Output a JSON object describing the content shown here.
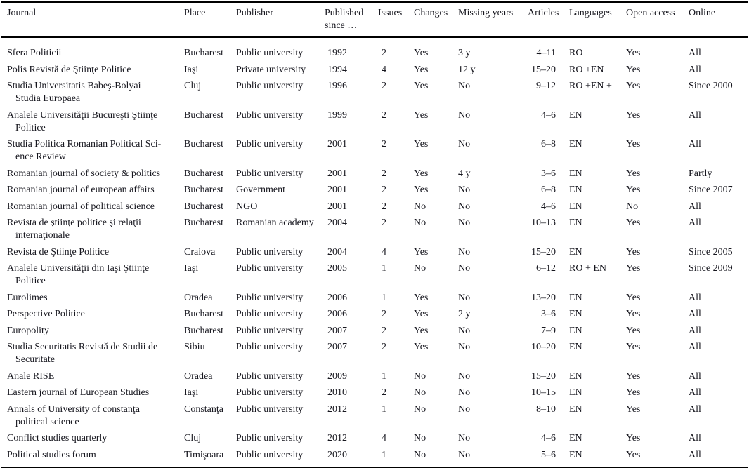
{
  "colors": {
    "background": "#ffffff",
    "text": "#16161e",
    "rule": "#000000"
  },
  "table": {
    "columns": [
      {
        "key": "journal",
        "label": "Journal"
      },
      {
        "key": "place",
        "label": "Place"
      },
      {
        "key": "publisher",
        "label": "Publisher"
      },
      {
        "key": "published_since",
        "label": "Published since …"
      },
      {
        "key": "issues",
        "label": "Issues"
      },
      {
        "key": "changes",
        "label": "Changes"
      },
      {
        "key": "missing_years",
        "label": "Missing years"
      },
      {
        "key": "articles",
        "label": "Articles"
      },
      {
        "key": "languages",
        "label": "Languages"
      },
      {
        "key": "open_access",
        "label": "Open access"
      },
      {
        "key": "online",
        "label": "Online"
      }
    ],
    "rows": [
      {
        "journal": "Sfera Politicii",
        "place": "Bucharest",
        "publisher": "Public university",
        "published_since": "1992",
        "issues": "2",
        "changes": "Yes",
        "missing_years": "3 y",
        "articles": "4–11",
        "languages": "RO",
        "open_access": "Yes",
        "online": "All"
      },
      {
        "journal": "Polis Revistă de Ştiinţe Politice",
        "place": "Iaşi",
        "publisher": "Private university",
        "published_since": "1994",
        "issues": "4",
        "changes": "Yes",
        "missing_years": "12 y",
        "articles": "15–20",
        "languages": "RO +EN",
        "open_access": "Yes",
        "online": "All"
      },
      {
        "journal": "Studia Universitatis Babeş-Bolyai\nStudia Europaea",
        "place": "Cluj",
        "publisher": "Public university",
        "published_since": "1996",
        "issues": "2",
        "changes": "Yes",
        "missing_years": "No",
        "articles": "9–12",
        "languages": "RO +EN +",
        "open_access": "Yes",
        "online": "Since 2000"
      },
      {
        "journal": "Analele Universităţii Bucureşti Ştiinţe\nPolitice",
        "place": "Bucharest",
        "publisher": "Public university",
        "published_since": "1999",
        "issues": "2",
        "changes": "Yes",
        "missing_years": "No",
        "articles": "4–6",
        "languages": "EN",
        "open_access": "Yes",
        "online": "All"
      },
      {
        "journal": "Studia Politica Romanian Political Sci-\nence Review",
        "place": "Bucharest",
        "publisher": "Public university",
        "published_since": "2001",
        "issues": "2",
        "changes": "Yes",
        "missing_years": "No",
        "articles": "6–8",
        "languages": "EN",
        "open_access": "Yes",
        "online": "All"
      },
      {
        "journal": "Romanian journal of society & politics",
        "place": "Bucharest",
        "publisher": "Public university",
        "published_since": "2001",
        "issues": "2",
        "changes": "Yes",
        "missing_years": "4 y",
        "articles": "3–6",
        "languages": "EN",
        "open_access": "Yes",
        "online": "Partly"
      },
      {
        "journal": "Romanian journal of european affairs",
        "place": "Bucharest",
        "publisher": "Government",
        "published_since": "2001",
        "issues": "2",
        "changes": "Yes",
        "missing_years": "No",
        "articles": "6–8",
        "languages": "EN",
        "open_access": "Yes",
        "online": "Since 2007"
      },
      {
        "journal": "Romanian journal of political science",
        "place": "Bucharest",
        "publisher": "NGO",
        "published_since": "2001",
        "issues": "2",
        "changes": "No",
        "missing_years": "No",
        "articles": "4–6",
        "languages": "EN",
        "open_access": "No",
        "online": "All"
      },
      {
        "journal": "Revista de ştiinţe politice şi relaţii\ninternaţionale",
        "place": "Bucharest",
        "publisher": "Romanian academy",
        "published_since": "2004",
        "issues": "2",
        "changes": "No",
        "missing_years": "No",
        "articles": "10–13",
        "languages": "EN",
        "open_access": "Yes",
        "online": "All"
      },
      {
        "journal": "Revista de Ştiinţe Politice",
        "place": "Craiova",
        "publisher": "Public university",
        "published_since": "2004",
        "issues": "4",
        "changes": "Yes",
        "missing_years": "No",
        "articles": "15–20",
        "languages": "EN",
        "open_access": "Yes",
        "online": "Since 2005"
      },
      {
        "journal": "Analele Universităţii din Iaşi Ştiinţe\nPolitice",
        "place": "Iaşi",
        "publisher": "Public university",
        "published_since": "2005",
        "issues": "1",
        "changes": "No",
        "missing_years": "No",
        "articles": "6–12",
        "languages": "RO + EN",
        "open_access": "Yes",
        "online": "Since 2009"
      },
      {
        "journal": "Eurolimes",
        "place": "Oradea",
        "publisher": "Public university",
        "published_since": "2006",
        "issues": "1",
        "changes": "Yes",
        "missing_years": "No",
        "articles": "13–20",
        "languages": "EN",
        "open_access": "Yes",
        "online": "All"
      },
      {
        "journal": "Perspective Politice",
        "place": "Bucharest",
        "publisher": "Public university",
        "published_since": "2006",
        "issues": "2",
        "changes": "Yes",
        "missing_years": "2 y",
        "articles": "3–6",
        "languages": "EN",
        "open_access": "Yes",
        "online": "All"
      },
      {
        "journal": "Europolity",
        "place": "Bucharest",
        "publisher": "Public university",
        "published_since": "2007",
        "issues": "2",
        "changes": "Yes",
        "missing_years": "No",
        "articles": "7–9",
        "languages": "EN",
        "open_access": "Yes",
        "online": "All"
      },
      {
        "journal": "Studia Securitatis Revistă de Studii de\nSecuritate",
        "place": "Sibiu",
        "publisher": "Public university",
        "published_since": "2007",
        "issues": "2",
        "changes": "Yes",
        "missing_years": "No",
        "articles": "10–20",
        "languages": "EN",
        "open_access": "Yes",
        "online": "All"
      },
      {
        "journal": "Anale RISE",
        "place": "Oradea",
        "publisher": "Public university",
        "published_since": "2009",
        "issues": "1",
        "changes": "No",
        "missing_years": "No",
        "articles": "15–20",
        "languages": "EN",
        "open_access": "Yes",
        "online": "All"
      },
      {
        "journal": "Eastern journal of European Studies",
        "place": "Iaşi",
        "publisher": "Public university",
        "published_since": "2010",
        "issues": "2",
        "changes": "No",
        "missing_years": "No",
        "articles": "10–15",
        "languages": "EN",
        "open_access": "Yes",
        "online": "All"
      },
      {
        "journal": "Annals of University of constanţa\npolitical science",
        "place": "Constanţa",
        "publisher": "Public university",
        "published_since": "2012",
        "issues": "1",
        "changes": "No",
        "missing_years": "No",
        "articles": "8–10",
        "languages": "EN",
        "open_access": "Yes",
        "online": "All"
      },
      {
        "journal": "Conflict studies quarterly",
        "place": "Cluj",
        "publisher": "Public university",
        "published_since": "2012",
        "issues": "4",
        "changes": "No",
        "missing_years": "No",
        "articles": "4–6",
        "languages": "EN",
        "open_access": "Yes",
        "online": "All"
      },
      {
        "journal": "Political studies forum",
        "place": "Timişoara",
        "publisher": "Public university",
        "published_since": "2020",
        "issues": "1",
        "changes": "No",
        "missing_years": "No",
        "articles": "5–6",
        "languages": "EN",
        "open_access": "Yes",
        "online": "All"
      }
    ]
  }
}
